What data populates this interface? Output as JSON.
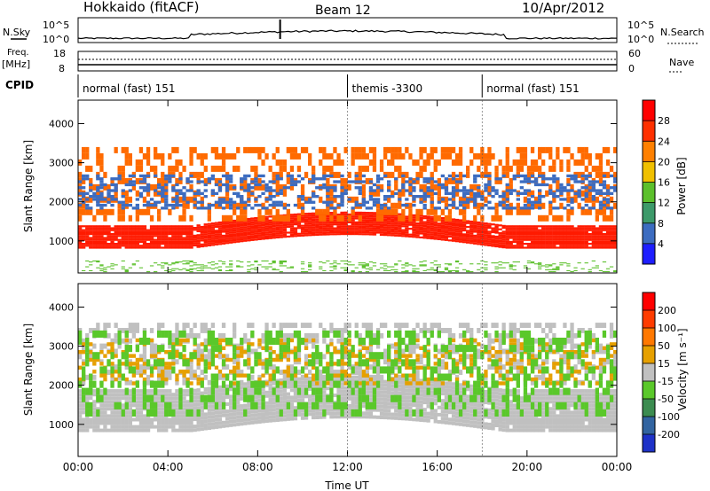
{
  "header": {
    "station": "Hokkaido (fitACF)",
    "beam": "Beam 12",
    "date": "10/Apr/2012"
  },
  "strip_labels": {
    "nsky": "N.Sky",
    "freq": "Freq.",
    "freq_unit": "[MHz]",
    "cpid": "CPID",
    "nsearch": "N.Search",
    "nave": "Nave"
  },
  "strip_ticks": {
    "noise_left": [
      "10^5",
      "10^0"
    ],
    "noise_right": [
      "10^5",
      "10^0"
    ],
    "freq_left": [
      "18",
      "8"
    ],
    "freq_right": [
      "60",
      "0"
    ]
  },
  "cpid_segments": [
    {
      "label": "normal (fast) 151",
      "start_hour": 0,
      "end_hour": 12
    },
    {
      "label": "themis -3300",
      "start_hour": 12,
      "end_hour": 18
    },
    {
      "label": "normal (fast) 151",
      "start_hour": 18,
      "end_hour": 24
    }
  ],
  "chart_data": [
    {
      "type": "heatmap",
      "name": "power",
      "xlabel": "",
      "ylabel": "Slant Range [km]",
      "colorbar_label": "Power [dB]",
      "xlim": [
        0,
        24
      ],
      "ylim": [
        180,
        4600
      ],
      "yticks": [
        1000,
        2000,
        3000,
        4000
      ],
      "colorbar_ticks": [
        "4",
        "8",
        "12",
        "16",
        "20",
        "24",
        "28"
      ],
      "colorbar_colors": [
        "#1e1eff",
        "#3c6cc0",
        "#3d9a6a",
        "#5cc02c",
        "#f0c000",
        "#ff8000",
        "#ff3000",
        "#ff0000"
      ],
      "bands": [
        {
          "range_low_km": 800,
          "range_high_km": 1400,
          "color": "#ff1a00",
          "density": 0.95
        },
        {
          "range_low_km": 1500,
          "range_high_km": 3400,
          "color": "#ff6a00",
          "density": 0.45
        },
        {
          "range_low_km": 1800,
          "range_high_km": 2700,
          "color": "#3c6cc0",
          "density": 0.35
        },
        {
          "range_low_km": 200,
          "range_high_km": 500,
          "color": "#5cc02c",
          "density": 0.2
        }
      ]
    },
    {
      "type": "heatmap",
      "name": "velocity",
      "xlabel": "Time UT",
      "ylabel": "Slant Range [km]",
      "colorbar_label": "Velocity [m s⁻¹]",
      "xlim": [
        0,
        24
      ],
      "ylim": [
        180,
        4600
      ],
      "yticks": [
        1000,
        2000,
        3000,
        4000
      ],
      "xticks": [
        "00:00",
        "04:00",
        "08:00",
        "12:00",
        "16:00",
        "20:00",
        "00:00"
      ],
      "colorbar_ticks": [
        "200",
        "100",
        "50",
        "15",
        "-15",
        "-50",
        "-100",
        "-200"
      ],
      "colorbar_colors": [
        "#1e32c8",
        "#3264a0",
        "#3c8c50",
        "#5ac82a",
        "#c0c0c0",
        "#e6a000",
        "#ff7800",
        "#ff3c00",
        "#ff0000"
      ],
      "bands": [
        {
          "range_low_km": 800,
          "range_high_km": 1900,
          "color": "#c0c0c0",
          "density": 0.95
        },
        {
          "range_low_km": 2000,
          "range_high_km": 3600,
          "color": "#c0c0c0",
          "density": 0.4
        },
        {
          "range_low_km": 2000,
          "range_high_km": 3200,
          "color": "#e6a000",
          "density": 0.3
        },
        {
          "range_low_km": 1200,
          "range_high_km": 3400,
          "color": "#5ac82a",
          "density": 0.3
        }
      ]
    }
  ]
}
